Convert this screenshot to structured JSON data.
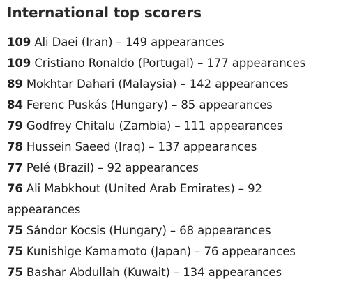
{
  "title": "International top scorers",
  "scorers": [
    {
      "goals": "109",
      "text": "Ali Daei (Iran) – 149 appearances"
    },
    {
      "goals": "109",
      "text": "Cristiano Ronaldo (Portugal) – 177 appearances"
    },
    {
      "goals": "89",
      "text": "Mokhtar Dahari (Malaysia) – 142 appearances"
    },
    {
      "goals": "84",
      "text": "Ferenc Puskás (Hungary) – 85 appearances"
    },
    {
      "goals": "79",
      "text": "Godfrey Chitalu (Zambia) – 111 appearances"
    },
    {
      "goals": "78",
      "text": "Hussein Saeed (Iraq) – 137 appearances"
    },
    {
      "goals": "77",
      "text": "Pelé (Brazil) – 92 appearances"
    },
    {
      "goals": "76",
      "text": "Ali Mabkhout (United Arab Emirates) – 92 appearances"
    },
    {
      "goals": "75",
      "text": "Sándor Kocsis (Hungary) – 68 appearances"
    },
    {
      "goals": "75",
      "text": "Kunishige Kamamoto (Japan) – 76 appearances"
    },
    {
      "goals": "75",
      "text": "Bashar Abdullah (Kuwait) – 134 appearances"
    }
  ]
}
